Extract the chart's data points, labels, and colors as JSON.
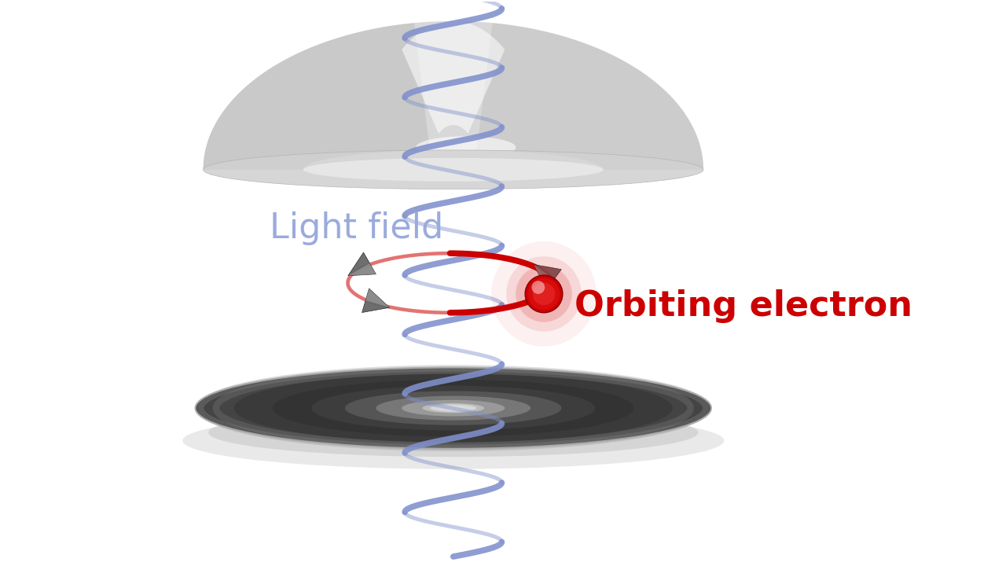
{
  "bg_color": "#ffffff",
  "helix_color": "#8090cc",
  "helix_linewidth": 5.5,
  "electron_orbit_color": "#cc0000",
  "electron_orbit_linewidth": 5.5,
  "electron_color": "#cc0000",
  "arrow_color": "#555555",
  "light_field_label": "Light field",
  "light_field_label_color": "#9aabdd",
  "light_field_label_fontsize": 32,
  "orbiting_electron_label": "Orbiting electron",
  "orbiting_electron_label_color": "#cc0000",
  "orbiting_electron_label_fontsize": 32,
  "fig_width": 12.8,
  "fig_height": 7.2,
  "dpi": 100
}
